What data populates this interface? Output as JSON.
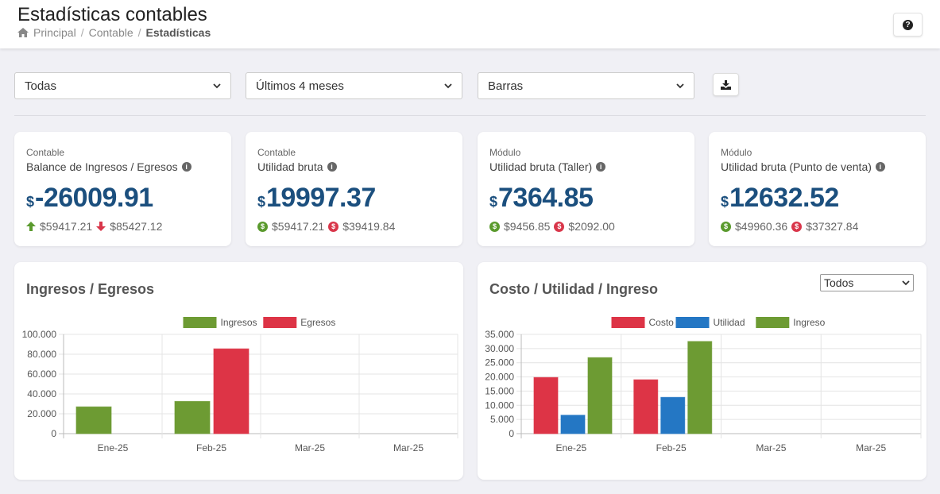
{
  "header": {
    "title": "Estadísticas contables",
    "breadcrumb": [
      "Principal",
      "Contable",
      "Estadísticas"
    ],
    "help_label": "?"
  },
  "filters": [
    {
      "value": "Todas"
    },
    {
      "value": "Últimos 4 meses"
    },
    {
      "value": "Barras"
    }
  ],
  "stats": [
    {
      "category": "Contable",
      "label": "Balance de Ingresos / Egresos",
      "currency": "$",
      "value": "-26009.91",
      "sub1": "$59417.21",
      "sub2": "$85427.12",
      "sub_style": "arrows"
    },
    {
      "category": "Contable",
      "label": "Utilidad bruta",
      "currency": "$",
      "value": "19997.37",
      "sub1": "$59417.21",
      "sub2": "$39419.84",
      "sub_style": "coins"
    },
    {
      "category": "Módulo",
      "label": "Utilidad bruta (Taller)",
      "currency": "$",
      "value": "7364.85",
      "sub1": "$9456.85",
      "sub2": "$2092.00",
      "sub_style": "coins"
    },
    {
      "category": "Módulo",
      "label": "Utilidad bruta (Punto de venta)",
      "currency": "$",
      "value": "12632.52",
      "sub1": "$49960.36",
      "sub2": "$37327.84",
      "sub_style": "coins"
    }
  ],
  "chart_cards": [
    {
      "title": "Ingresos / Egresos"
    },
    {
      "title": "Costo / Utilidad / Ingreso",
      "select_value": "Todos"
    }
  ],
  "colors": {
    "green": "#6d9b33",
    "red": "#dd3446",
    "blue": "#2477c4",
    "title": "#1b4f7e"
  },
  "chart_data": [
    {
      "type": "bar",
      "title": "",
      "categories": [
        "Ene-25",
        "Feb-25",
        "Mar-25",
        "Mar-25"
      ],
      "series": [
        {
          "name": "Ingresos",
          "color": "#6d9b33",
          "values": [
            27000,
            32500,
            0,
            0
          ]
        },
        {
          "name": "Egresos",
          "color": "#dd3446",
          "values": [
            0,
            85427,
            0,
            0
          ]
        }
      ],
      "ylim": [
        0,
        100000
      ],
      "yticks": [
        0,
        20000,
        40000,
        60000,
        80000,
        100000
      ],
      "ytick_labels": [
        "0",
        "20.000",
        "40.000",
        "60.000",
        "80.000",
        "100.000"
      ],
      "legend": "top-center",
      "grid": true
    },
    {
      "type": "bar",
      "title": "",
      "categories": [
        "Ene-25",
        "Feb-25",
        "Mar-25",
        "Mar-25"
      ],
      "series": [
        {
          "name": "Costo",
          "color": "#dd3446",
          "values": [
            19800,
            19000,
            0,
            0
          ]
        },
        {
          "name": "Utilidad",
          "color": "#2477c4",
          "values": [
            6500,
            12800,
            0,
            0
          ]
        },
        {
          "name": "Ingreso",
          "color": "#6d9b33",
          "values": [
            26800,
            32500,
            0,
            0
          ]
        }
      ],
      "ylim": [
        0,
        35000
      ],
      "yticks": [
        0,
        5000,
        10000,
        15000,
        20000,
        25000,
        30000,
        35000
      ],
      "ytick_labels": [
        "0",
        "5.000",
        "10.000",
        "15.000",
        "20.000",
        "25.000",
        "30.000",
        "35.000"
      ],
      "legend": "top-center",
      "grid": true
    }
  ]
}
